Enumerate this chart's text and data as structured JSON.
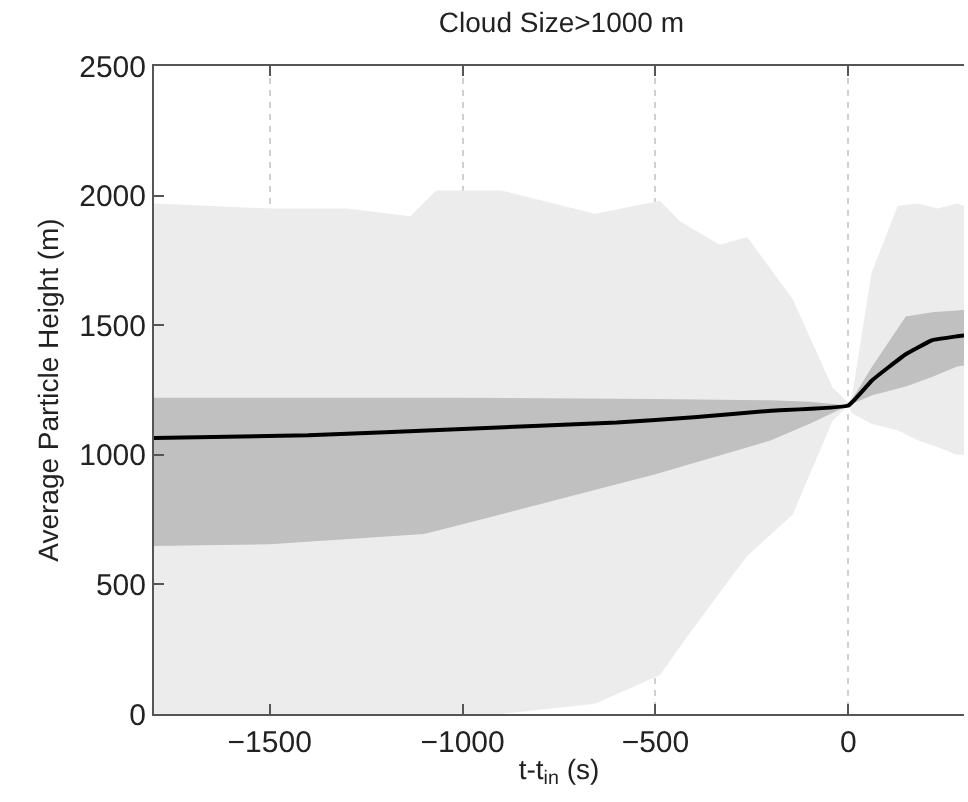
{
  "chart_data": {
    "type": "line",
    "title": "Cloud Size>1000 m",
    "xlabel": "t-t$_{in}$ (s)",
    "ylabel": "Average Particle Height (m)",
    "xlim": [
      -1800,
      300
    ],
    "xticks": [
      {
        "value": -1500,
        "label": "−1500"
      },
      {
        "value": -1000,
        "label": "−1000"
      },
      {
        "value": -500,
        "label": "−500"
      },
      0
    ],
    "ylim": [
      0,
      2500
    ],
    "yticks": [
      0,
      500,
      1000,
      1500,
      2000,
      2500
    ],
    "grid": "x",
    "series": [
      {
        "type": "area",
        "color": "#ececec",
        "x": [
          -1800,
          -1500,
          -1300,
          -1135,
          -1068,
          -900,
          -657,
          -488,
          -436,
          -333,
          -262,
          -144,
          -41,
          0,
          10,
          60,
          128,
          180,
          231,
          282,
          300
        ],
        "values": [
          null,
          null,
          null,
          null,
          null,
          null,
          null,
          null,
          null,
          null,
          null,
          null,
          null,
          null,
          null,
          null,
          null,
          null,
          null,
          null,
          null
        ],
        "upper": [
          1970,
          1950,
          1950,
          1920,
          2020,
          2020,
          1930,
          1980,
          1900,
          1810,
          1840,
          1600,
          1260,
          1200,
          1230,
          1700,
          1960,
          1970,
          1950,
          1970,
          1960
        ],
        "lower": [
          0,
          0,
          0,
          0,
          0,
          0,
          40,
          150,
          260,
          470,
          610,
          770,
          1130,
          1190,
          1160,
          1120,
          1095,
          1056,
          1030,
          1000,
          1000
        ]
      },
      {
        "type": "area",
        "color": "#c0c0c0",
        "x": [
          -1800,
          -1500,
          -1100,
          -1000,
          -500,
          -200,
          -100,
          0,
          62,
          149,
          217,
          282,
          300
        ],
        "values": [
          null,
          null,
          null,
          null,
          null,
          null,
          null,
          null,
          null,
          null,
          null,
          null,
          null
        ],
        "upper": [
          1220,
          1220,
          1220,
          1220,
          1215,
          1210,
          1205,
          1190,
          1341,
          1534,
          1550,
          1557,
          1560
        ],
        "lower": [
          648,
          655,
          694,
          732,
          925,
          1056,
          1120,
          1190,
          1230,
          1264,
          1300,
          1341,
          1345
        ]
      },
      {
        "color": "#000000",
        "x": [
          -1800,
          -1400,
          -1000,
          -600,
          -400,
          -200,
          0,
          62,
          149,
          217,
          282,
          300
        ],
        "values": [
          1065,
          1075,
          1100,
          1125,
          1145,
          1170,
          1190,
          1288,
          1388,
          1442,
          1457,
          1460
        ]
      }
    ]
  }
}
